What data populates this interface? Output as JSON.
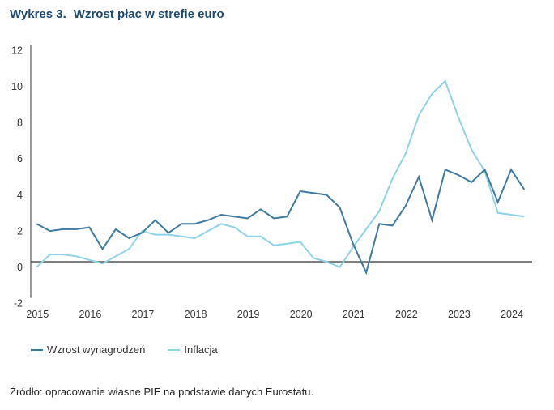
{
  "title": {
    "number": "Wykres 3.",
    "text": "Wzrost płac w strefie euro"
  },
  "source": "Źródło: opracowanie własne PIE na podstawie danych Eurostatu.",
  "colors": {
    "title": "#1d4a6e",
    "wages": "#3f7aa0",
    "inflation": "#8ed3e8",
    "axis": "#555555"
  },
  "chart_data": {
    "type": "line",
    "title": "Wzrost płac w strefie euro",
    "xlabel": "",
    "ylabel": "",
    "ylim": [
      -2,
      12
    ],
    "yticks": [
      -2,
      0,
      2,
      4,
      6,
      8,
      10,
      12
    ],
    "xtick_labels": [
      "2015",
      "2016",
      "2017",
      "2018",
      "2019",
      "2020",
      "2021",
      "2022",
      "2023",
      "2024"
    ],
    "x": [
      "2015Q1",
      "2015Q2",
      "2015Q3",
      "2015Q4",
      "2016Q1",
      "2016Q2",
      "2016Q3",
      "2016Q4",
      "2017Q1",
      "2017Q2",
      "2017Q3",
      "2017Q4",
      "2018Q1",
      "2018Q2",
      "2018Q3",
      "2018Q4",
      "2019Q1",
      "2019Q2",
      "2019Q3",
      "2019Q4",
      "2020Q1",
      "2020Q2",
      "2020Q3",
      "2020Q4",
      "2021Q1",
      "2021Q2",
      "2021Q3",
      "2021Q4",
      "2022Q1",
      "2022Q2",
      "2022Q3",
      "2022Q4",
      "2023Q1",
      "2023Q2",
      "2023Q3",
      "2023Q4",
      "2024Q1",
      "2024Q2"
    ],
    "grid": false,
    "legend_position": "bottom-left",
    "series": [
      {
        "name": "Wzrost wynagrodzeń",
        "values": [
          2.1,
          1.7,
          1.8,
          1.8,
          1.9,
          0.7,
          1.8,
          1.3,
          1.6,
          2.3,
          1.6,
          2.1,
          2.1,
          2.3,
          2.6,
          2.5,
          2.4,
          2.9,
          2.4,
          2.5,
          3.9,
          3.8,
          3.7,
          3.0,
          1.0,
          -0.6,
          2.1,
          2.0,
          3.1,
          4.7,
          2.3,
          5.1,
          4.8,
          4.4,
          5.1,
          3.3,
          5.1,
          4.0
        ]
      },
      {
        "name": "Inflacja",
        "values": [
          -0.3,
          0.4,
          0.4,
          0.3,
          0.1,
          -0.1,
          0.3,
          0.7,
          1.7,
          1.5,
          1.5,
          1.4,
          1.3,
          1.7,
          2.1,
          1.9,
          1.4,
          1.4,
          0.9,
          1.0,
          1.1,
          0.2,
          0.0,
          -0.3,
          0.8,
          1.8,
          2.8,
          4.6,
          6.0,
          8.1,
          9.3,
          10.0,
          8.0,
          6.2,
          5.0,
          2.7,
          2.6,
          2.5
        ]
      }
    ]
  }
}
